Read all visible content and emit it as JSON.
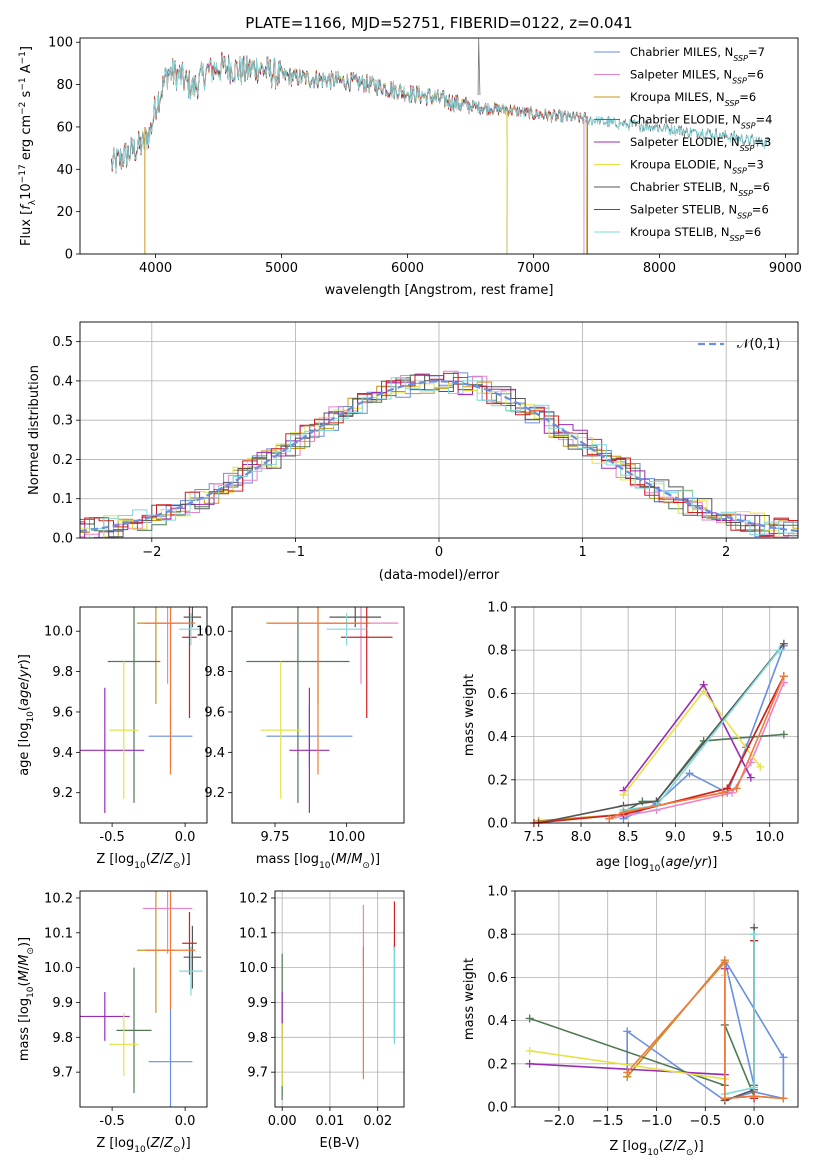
{
  "chart_data": [
    {
      "id": "spectrum",
      "type": "line",
      "title": "PLATE=1166, MJD=52751, FIBERID=0122, z=0.041",
      "xlabel": "wavelength [Angstrom, rest frame]",
      "ylabel": "Flux [f_λ 10^-17 erg cm^-2 s^-1 A^-1]",
      "xlim": [
        3400,
        9100
      ],
      "ylim": [
        0,
        102
      ],
      "xticks": [
        4000,
        5000,
        6000,
        7000,
        8000,
        9000
      ],
      "yticks": [
        0,
        20,
        40,
        60,
        80,
        100
      ],
      "legend_position": "top-right",
      "anchors_x": [
        3650,
        3700,
        3800,
        3900,
        3960,
        4000,
        4100,
        4200,
        4300,
        4400,
        4500,
        4600,
        4700,
        4800,
        4900,
        5000,
        5200,
        5400,
        5600,
        5800,
        6000,
        6200,
        6400,
        6600,
        6800,
        7000,
        7200,
        7400,
        7600,
        7800,
        8000,
        8200,
        8400,
        8600,
        8800,
        8900
      ],
      "anchors_y": [
        42,
        44,
        48,
        52,
        58,
        70,
        86,
        84,
        78,
        86,
        88,
        88,
        86,
        88,
        86,
        84,
        83,
        82,
        81,
        79,
        76,
        74,
        71,
        69,
        68,
        66,
        65,
        64,
        62,
        61,
        60,
        58,
        57,
        55,
        53,
        52
      ],
      "series": [
        {
          "name": "Chabrier MILES",
          "nssp": "7",
          "color": "#6a8ee0",
          "end": 7400
        },
        {
          "name": "Salpeter MILES",
          "nssp": "6",
          "color": "#ee82c8",
          "end": 7400
        },
        {
          "name": "Kroupa MILES",
          "nssp": "6",
          "color": "#c8941e",
          "end": 7420
        },
        {
          "name": "Chabrier ELODIE",
          "nssp": "4",
          "color": "#4f7a55",
          "end": 6790
        },
        {
          "name": "Salpeter ELODIE",
          "nssp": "3",
          "color": "#9b2bb5",
          "end": 6790
        },
        {
          "name": "Kroupa ELODIE",
          "nssp": "3",
          "color": "#e4e346",
          "end": 6790
        },
        {
          "name": "Chabrier STELIB",
          "nssp": "6",
          "color": "#555555",
          "end": 8870
        },
        {
          "name": "Salpeter STELIB",
          "nssp": "6",
          "color": "#cf2020",
          "end": 7430
        },
        {
          "name": "Kroupa STELIB",
          "nssp": "6",
          "color": "#7fd8dc",
          "end": 8870
        }
      ]
    },
    {
      "id": "residuals",
      "type": "area",
      "xlabel": "(data-model)/error",
      "ylabel": "Normed distribution",
      "xlim": [
        -2.5,
        2.5
      ],
      "ylim": [
        0,
        0.55
      ],
      "xticks": [
        -2,
        -1,
        0,
        1,
        2
      ],
      "yticks": [
        0.0,
        0.1,
        0.2,
        0.3,
        0.4,
        0.5
      ],
      "grid": true,
      "legend": "𝒩(0,1)",
      "legend_position": "top-right",
      "bin_width": 0.1,
      "histogram_colors": [
        "#6a8ee0",
        "#ee82c8",
        "#c8941e",
        "#4f7a55",
        "#9b2bb5",
        "#e4e346",
        "#555555",
        "#cf2020",
        "#7fd8dc"
      ],
      "gaussian_color": "#6a8ee0"
    },
    {
      "id": "age-vs-Z",
      "type": "scatter",
      "xlabel": "Z [log10(Z/Z⊙)]",
      "ylabel": "age  [log10(age/yr)]",
      "xlim": [
        -0.72,
        0.15
      ],
      "ylim": [
        9.05,
        10.12
      ],
      "xticks": [
        "-0.5",
        "0.0"
      ],
      "xtick_values": [
        -0.5,
        0.0
      ],
      "yticks": [
        "9.2",
        "9.4",
        "9.6",
        "9.8",
        "10.0"
      ],
      "ytick_values": [
        9.2,
        9.4,
        9.6,
        9.8,
        10.0
      ],
      "points": [
        {
          "color": "#6a8ee0",
          "x": -0.1,
          "xe": 0.15,
          "y": 9.48,
          "ye": 0.15
        },
        {
          "color": "#ee82c8",
          "x": -0.12,
          "xe": 0.17,
          "y": 10.04,
          "ye": 0.3
        },
        {
          "color": "#c8941e",
          "x": -0.2,
          "xe": 0.13,
          "y": 10.04,
          "ye": 0.4
        },
        {
          "color": "#4f7a55",
          "x": -0.35,
          "xe": 0.18,
          "y": 9.85,
          "ye": 0.7
        },
        {
          "color": "#9b2bb5",
          "x": -0.55,
          "xe": 0.27,
          "y": 9.41,
          "ye": 0.31
        },
        {
          "color": "#e4e346",
          "x": -0.42,
          "xe": 0.1,
          "y": 9.51,
          "ye": 0.34
        },
        {
          "color": "#555555",
          "x": 0.05,
          "xe": 0.06,
          "y": 10.07,
          "ye": 0.05
        },
        {
          "color": "#cf2020",
          "x": 0.03,
          "xe": 0.05,
          "y": 9.97,
          "ye": 0.4
        },
        {
          "color": "#7fd8dc",
          "x": 0.04,
          "xe": 0.08,
          "y": 10.01,
          "ye": 0.08
        },
        {
          "color": "#ee7b3c",
          "x": -0.1,
          "xe": 0.17,
          "y": 10.04,
          "ye": 0.75
        }
      ]
    },
    {
      "id": "age-vs-mass",
      "type": "scatter",
      "xlabel": "mass [log10(M/M⊙)]",
      "ylabel": "",
      "xlim": [
        9.6,
        10.2
      ],
      "ylim": [
        9.05,
        10.12
      ],
      "xticks": [
        "9.75",
        "10.00"
      ],
      "xtick_values": [
        9.75,
        10.0
      ],
      "yticks": [
        "9.2",
        "9.4",
        "9.6",
        "9.8",
        "10.0"
      ],
      "ytick_values": [
        9.2,
        9.4,
        9.6,
        9.8,
        10.0
      ],
      "points": [
        {
          "color": "#6a8ee0",
          "x": 9.87,
          "xe": 0.15,
          "y": 9.48,
          "ye": 0.15
        },
        {
          "color": "#ee82c8",
          "x": 10.05,
          "xe": 0.13,
          "y": 10.04,
          "ye": 0.3
        },
        {
          "color": "#c8941e",
          "x": 9.9,
          "xe": 0.18,
          "y": 10.04,
          "ye": 0.4
        },
        {
          "color": "#4f7a55",
          "x": 9.83,
          "xe": 0.18,
          "y": 9.85,
          "ye": 0.7
        },
        {
          "color": "#9b2bb5",
          "x": 9.87,
          "xe": 0.07,
          "y": 9.41,
          "ye": 0.31
        },
        {
          "color": "#e4e346",
          "x": 9.77,
          "xe": 0.07,
          "y": 9.51,
          "ye": 0.34
        },
        {
          "color": "#555555",
          "x": 10.03,
          "xe": 0.09,
          "y": 10.07,
          "ye": 0.05
        },
        {
          "color": "#cf2020",
          "x": 10.07,
          "xe": 0.09,
          "y": 9.97,
          "ye": 0.4
        },
        {
          "color": "#7fd8dc",
          "x": 10.0,
          "xe": 0.07,
          "y": 10.01,
          "ye": 0.08
        },
        {
          "color": "#ee7b3c",
          "x": 9.9,
          "xe": 0.17,
          "y": 10.04,
          "ye": 0.75
        }
      ]
    },
    {
      "id": "mass-weight-vs-age",
      "type": "line",
      "xlabel": "age  [log10(age/yr)]",
      "ylabel": "mass weight",
      "xlim": [
        7.3,
        10.3
      ],
      "ylim": [
        0,
        1
      ],
      "xticks": [
        "7.5",
        "8.0",
        "8.5",
        "9.0",
        "9.5",
        "10.0"
      ],
      "xtick_values": [
        7.5,
        8.0,
        8.5,
        9.0,
        9.5,
        10.0
      ],
      "yticks": [
        "0.0",
        "0.2",
        "0.4",
        "0.6",
        "0.8",
        "1.0"
      ],
      "ytick_values": [
        0,
        0.2,
        0.4,
        0.6,
        0.8,
        1.0
      ],
      "grid": true,
      "series": [
        {
          "color": "#6a8ee0",
          "x": [
            8.45,
            8.8,
            9.15,
            9.55,
            9.75,
            10.15
          ],
          "y": [
            0.02,
            0.09,
            0.23,
            0.14,
            0.35,
            0.82
          ]
        },
        {
          "color": "#ee82c8",
          "x": [
            8.3,
            8.8,
            9.6,
            9.8,
            10.15
          ],
          "y": [
            0.02,
            0.06,
            0.14,
            0.28,
            0.65
          ]
        },
        {
          "color": "#c8941e",
          "x": [
            7.55,
            8.45,
            9.55,
            10.15
          ],
          "y": [
            0.01,
            0.04,
            0.16,
            0.68
          ]
        },
        {
          "color": "#4f7a55",
          "x": [
            8.45,
            8.65,
            8.8,
            9.3,
            10.15
          ],
          "y": [
            0.05,
            0.1,
            0.1,
            0.38,
            0.41
          ]
        },
        {
          "color": "#9b2bb5",
          "x": [
            8.45,
            9.3,
            9.8
          ],
          "y": [
            0.15,
            0.64,
            0.21
          ]
        },
        {
          "color": "#e4e346",
          "x": [
            8.45,
            9.3,
            9.9
          ],
          "y": [
            0.13,
            0.61,
            0.26
          ]
        },
        {
          "color": "#555555",
          "x": [
            7.55,
            8.45,
            8.8,
            10.15
          ],
          "y": [
            0.0,
            0.08,
            0.1,
            0.83
          ]
        },
        {
          "color": "#cf2020",
          "x": [
            7.5,
            8.45,
            9.55,
            10.15
          ],
          "y": [
            0.0,
            0.04,
            0.16,
            0.68
          ]
        },
        {
          "color": "#7fd8dc",
          "x": [
            8.45,
            8.8,
            10.1
          ],
          "y": [
            0.06,
            0.08,
            0.8
          ]
        },
        {
          "color": "#ee7b3c",
          "x": [
            8.3,
            8.45,
            9.5,
            9.65,
            10.15
          ],
          "y": [
            0.02,
            0.05,
            0.14,
            0.16,
            0.68
          ]
        }
      ]
    },
    {
      "id": "mass-vs-Z",
      "type": "scatter",
      "xlabel": "Z [log10(Z/Z⊙)]",
      "ylabel": "mass [log10(M/M⊙)]",
      "xlim": [
        -0.72,
        0.15
      ],
      "ylim": [
        9.6,
        10.22
      ],
      "xticks": [
        "-0.5",
        "0.0"
      ],
      "xtick_values": [
        -0.5,
        0.0
      ],
      "yticks": [
        "9.7",
        "9.8",
        "9.9",
        "10.0",
        "10.1",
        "10.2"
      ],
      "ytick_values": [
        9.7,
        9.8,
        9.9,
        10.0,
        10.1,
        10.2
      ],
      "points": [
        {
          "color": "#6a8ee0",
          "x": -0.1,
          "xe": 0.15,
          "y": 9.73,
          "ye": 0.15
        },
        {
          "color": "#ee82c8",
          "x": -0.12,
          "xe": 0.17,
          "y": 10.17,
          "ye": 0.13
        },
        {
          "color": "#c8941e",
          "x": -0.2,
          "xe": 0.13,
          "y": 10.05,
          "ye": 0.18
        },
        {
          "color": "#4f7a55",
          "x": -0.35,
          "xe": 0.12,
          "y": 9.82,
          "ye": 0.18
        },
        {
          "color": "#9b2bb5",
          "x": -0.55,
          "xe": 0.17,
          "y": 9.86,
          "ye": 0.07
        },
        {
          "color": "#e4e346",
          "x": -0.42,
          "xe": 0.1,
          "y": 9.78,
          "ye": 0.09
        },
        {
          "color": "#555555",
          "x": 0.05,
          "xe": 0.06,
          "y": 10.03,
          "ye": 0.09
        },
        {
          "color": "#cf2020",
          "x": 0.03,
          "xe": 0.05,
          "y": 10.07,
          "ye": 0.09
        },
        {
          "color": "#7fd8dc",
          "x": 0.04,
          "xe": 0.08,
          "y": 9.99,
          "ye": 0.07
        },
        {
          "color": "#ee7b3c",
          "x": -0.1,
          "xe": 0.17,
          "y": 10.05,
          "ye": 0.17
        }
      ]
    },
    {
      "id": "mass-vs-ebv",
      "type": "scatter",
      "xlabel": "E(B-V)",
      "ylabel": "",
      "xlim": [
        -0.0015,
        0.0255
      ],
      "ylim": [
        9.6,
        10.22
      ],
      "xticks": [
        "0.00",
        "0.01",
        "0.02"
      ],
      "xtick_values": [
        0.0,
        0.01,
        0.02
      ],
      "yticks": [
        "9.7",
        "9.8",
        "9.9",
        "10.0",
        "10.1",
        "10.2"
      ],
      "ytick_values": [
        9.7,
        9.8,
        9.9,
        10.0,
        10.1,
        10.2
      ],
      "grid": true,
      "points": [
        {
          "color": "#4f7a55",
          "x": 0.0,
          "y": 9.83,
          "ye": 0.21
        },
        {
          "color": "#9b2bb5",
          "x": 0.0,
          "y": 9.86,
          "ye": 0.07
        },
        {
          "color": "#e4e346",
          "x": 0.0,
          "y": 9.75,
          "ye": 0.09
        },
        {
          "color": "#ee82c8",
          "x": 0.017,
          "y": 10.09,
          "ye": 0.09
        },
        {
          "color": "#ee7b3c",
          "x": 0.017,
          "y": 9.87,
          "ye": 0.19
        },
        {
          "color": "#555555",
          "x": 0.0235,
          "y": 9.93,
          "ye": 0.14
        },
        {
          "color": "#cf2020",
          "x": 0.0235,
          "y": 10.12,
          "ye": 0.07
        },
        {
          "color": "#7fd8dc",
          "x": 0.0235,
          "y": 9.92,
          "ye": 0.14
        }
      ]
    },
    {
      "id": "mass-weight-vs-Z",
      "type": "line",
      "xlabel": "Z [log10(Z/Z⊙)]",
      "ylabel": "mass weight",
      "xlim": [
        -2.45,
        0.45
      ],
      "ylim": [
        0,
        1
      ],
      "xticks": [
        "−2.0",
        "−1.5",
        "−1.0",
        "−0.5",
        "0.0"
      ],
      "xtick_values": [
        -2.0,
        -1.5,
        -1.0,
        -0.5,
        0.0
      ],
      "yticks": [
        "0.0",
        "0.2",
        "0.4",
        "0.6",
        "0.8",
        "1.0"
      ],
      "ytick_values": [
        0,
        0.2,
        0.4,
        0.6,
        0.8,
        1.0
      ],
      "grid": true,
      "series": [
        {
          "color": "#6a8ee0",
          "x": [
            -1.3,
            -1.3,
            -0.3,
            0.0,
            0.3,
            0.3,
            -0.3,
            0.0
          ],
          "y": [
            0.14,
            0.35,
            0.03,
            0.07,
            0.04,
            0.23,
            0.68,
            0.1
          ]
        },
        {
          "color": "#ee82c8",
          "x": [
            -1.3,
            -0.3,
            -0.3,
            0.0
          ],
          "y": [
            0.14,
            0.68,
            0.04,
            0.05
          ]
        },
        {
          "color": "#c8941e",
          "x": [
            -1.3,
            -0.3,
            -0.3,
            0.0,
            0.3
          ],
          "y": [
            0.14,
            0.68,
            0.04,
            0.05,
            0.04
          ]
        },
        {
          "color": "#4f7a55",
          "x": [
            -2.3,
            -0.3,
            -0.3,
            0.0,
            0.0
          ],
          "y": [
            0.41,
            0.1,
            0.38,
            0.05,
            0.1
          ]
        },
        {
          "color": "#9b2bb5",
          "x": [
            -2.3,
            -0.3,
            -0.3
          ],
          "y": [
            0.2,
            0.15,
            0.64
          ]
        },
        {
          "color": "#e4e346",
          "x": [
            -2.3,
            -0.3,
            -0.3
          ],
          "y": [
            0.26,
            0.13,
            0.61
          ]
        },
        {
          "color": "#555555",
          "x": [
            -0.3,
            0.0,
            0.0
          ],
          "y": [
            0.03,
            0.08,
            0.83
          ]
        },
        {
          "color": "#cf2020",
          "x": [
            0.0,
            0.0
          ],
          "y": [
            0.04,
            0.77
          ]
        },
        {
          "color": "#7fd8dc",
          "x": [
            -0.3,
            0.0,
            0.0
          ],
          "y": [
            0.06,
            0.09,
            0.8
          ]
        },
        {
          "color": "#ee7b3c",
          "x": [
            -1.3,
            -0.3,
            -0.3,
            0.0,
            0.3
          ],
          "y": [
            0.16,
            0.67,
            0.04,
            0.05,
            0.04
          ]
        }
      ]
    }
  ]
}
